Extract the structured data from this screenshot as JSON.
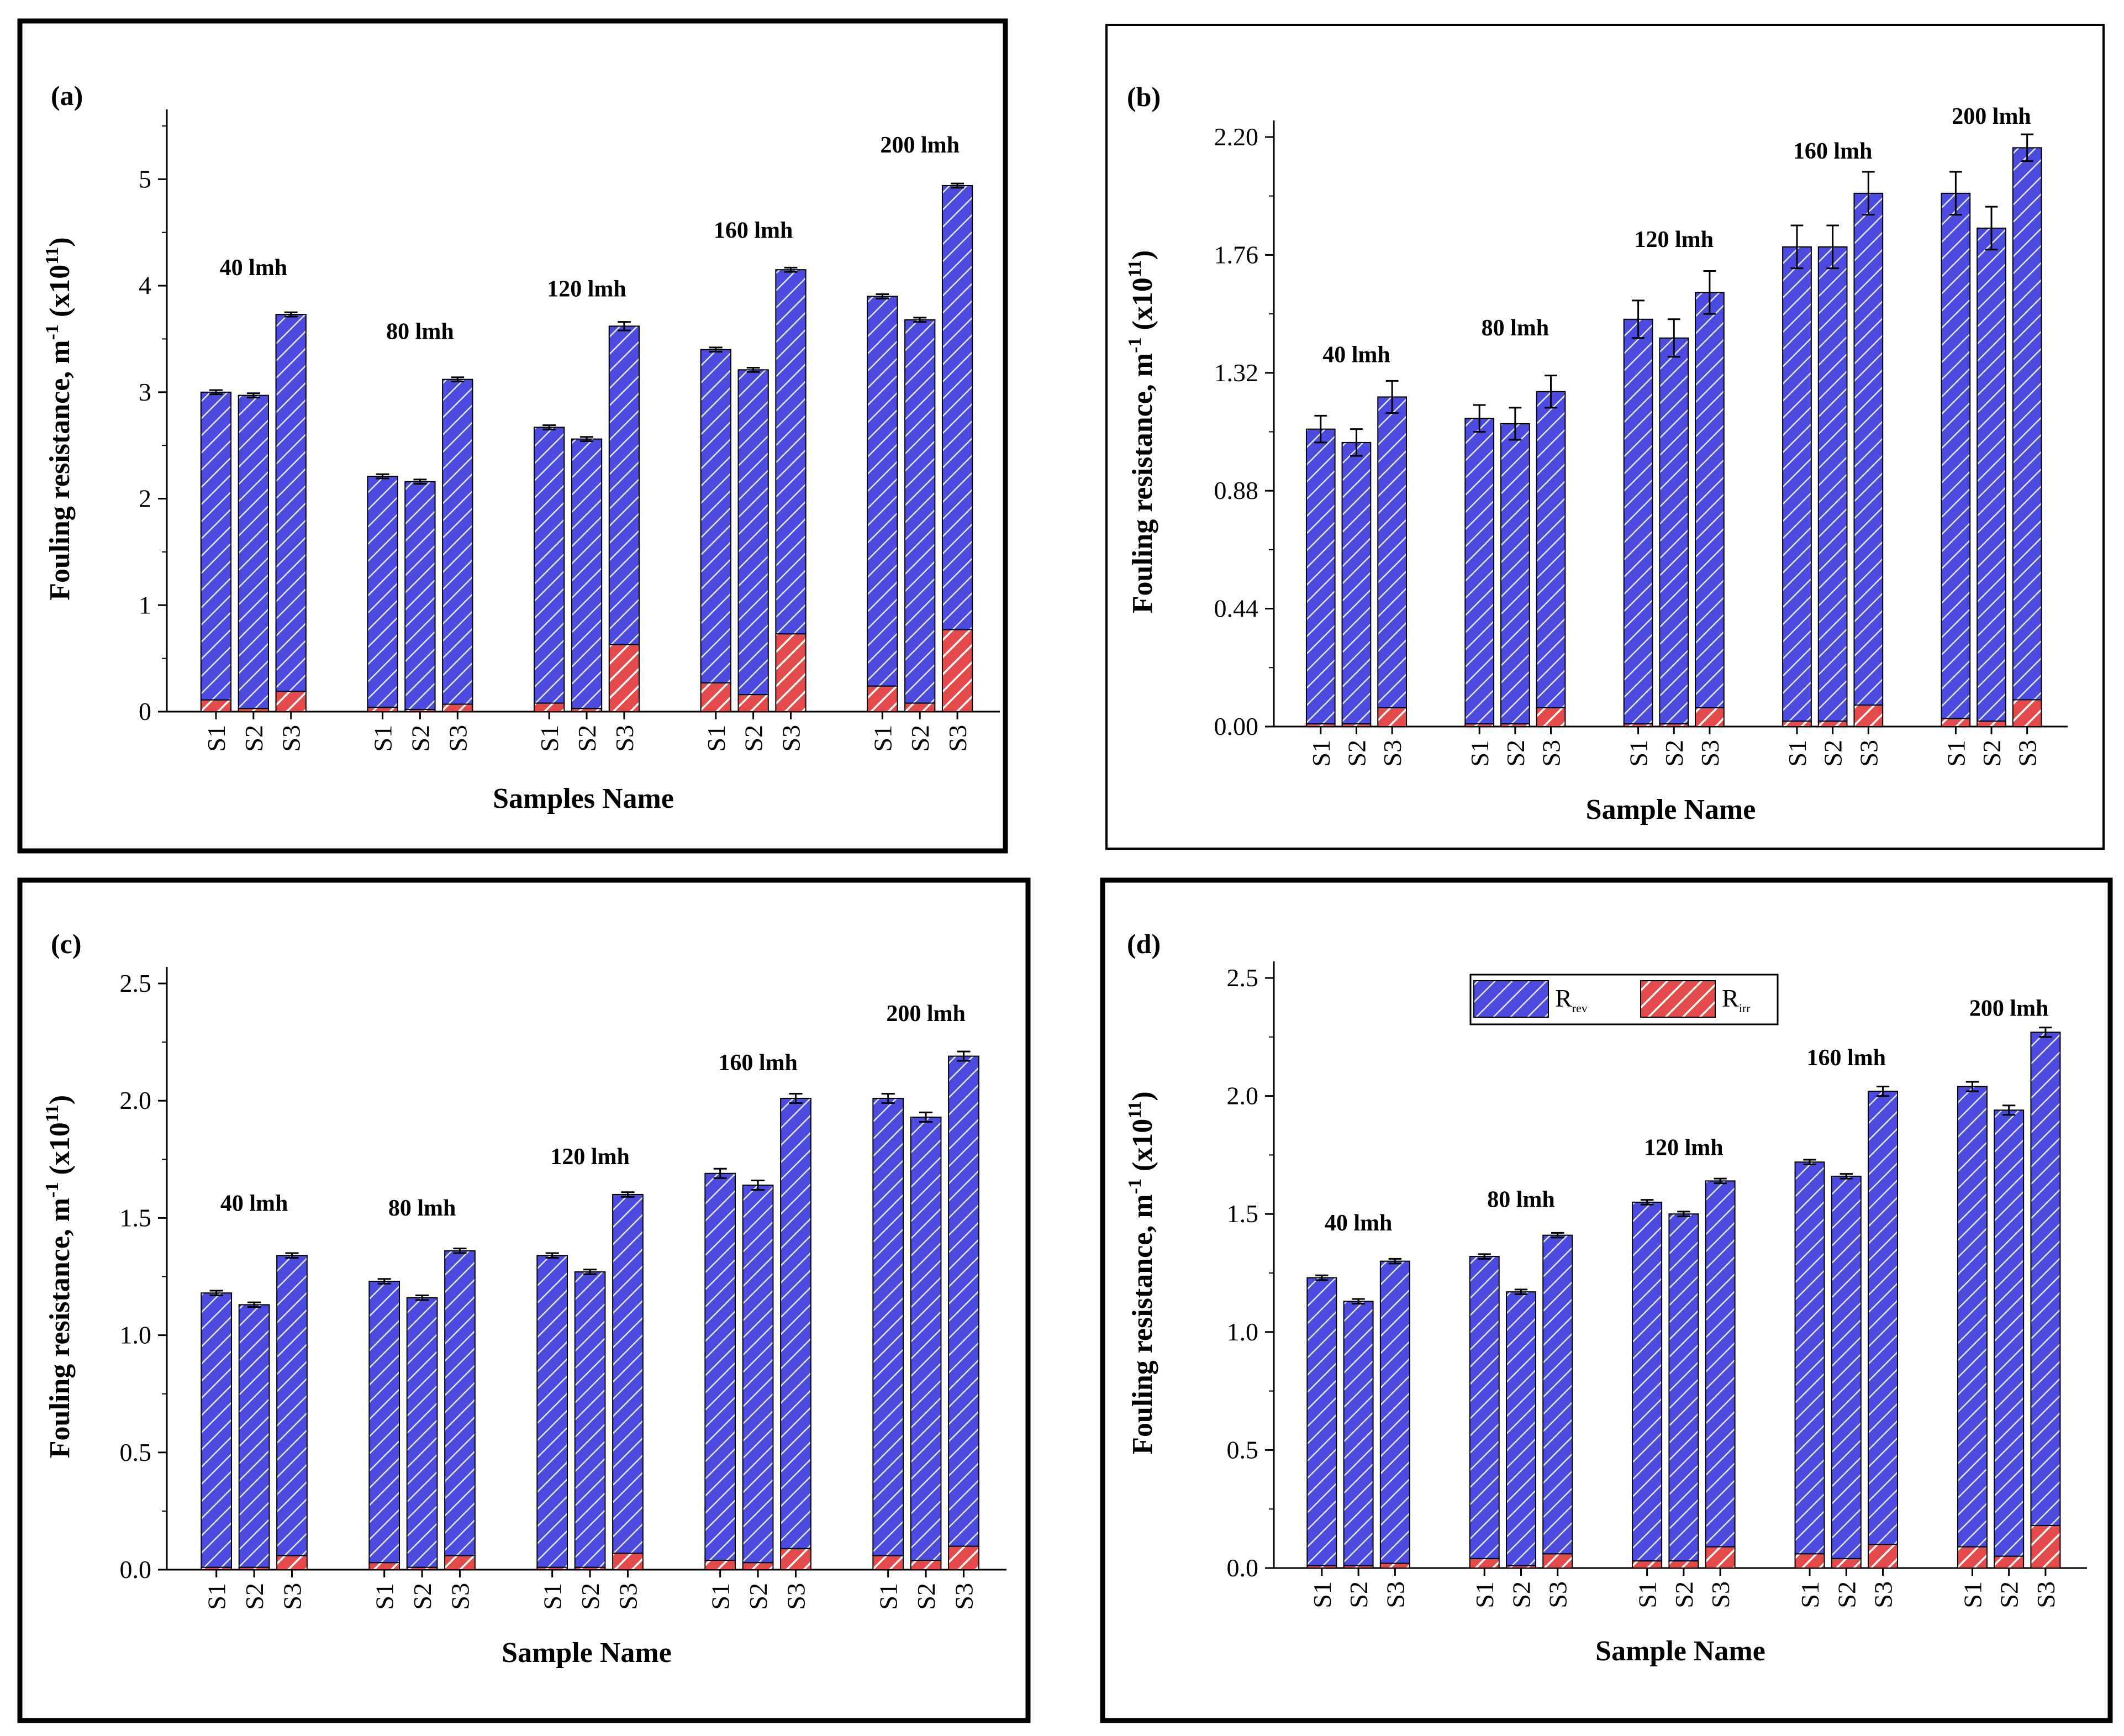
{
  "colors": {
    "rev": "#4b4bdf",
    "irr": "#e54a4a",
    "rev_hatch": "#1a1a9a",
    "irr_hatch": "#ffffff"
  },
  "legend": {
    "rev_main": "R",
    "rev_sub": "rev",
    "irr_main": "R",
    "irr_sub": "irr"
  },
  "chart_data": [
    {
      "type": "bar",
      "stacked": true,
      "panel": "(a)",
      "ylabel": "Fouling resistance, m",
      "ylabel_sup": "-1",
      "ylabel_unit": " (x10",
      "ylabel_unit_sup": "11",
      "ylabel_end": ")",
      "xlabel": "Samples Name",
      "yticks": [
        "0",
        "1",
        "2",
        "3",
        "4",
        "5"
      ],
      "ylim": [
        0,
        5.5
      ],
      "groups": [
        {
          "label": "40 lmh",
          "label_y": 4.1,
          "samples": [
            "S1",
            "S2",
            "S3"
          ],
          "total": [
            3.0,
            2.97,
            3.73
          ],
          "irr": [
            0.11,
            0.03,
            0.19
          ]
        },
        {
          "label": "80 lmh",
          "label_y": 3.5,
          "samples": [
            "S1",
            "S2",
            "S3"
          ],
          "total": [
            2.21,
            2.16,
            3.12
          ],
          "irr": [
            0.04,
            0.02,
            0.07
          ]
        },
        {
          "label": "120 lmh",
          "label_y": 3.9,
          "samples": [
            "S1",
            "S2",
            "S3"
          ],
          "total": [
            2.67,
            2.56,
            3.62
          ],
          "irr": [
            0.08,
            0.03,
            0.63
          ]
        },
        {
          "label": "160 lmh",
          "label_y": 4.45,
          "samples": [
            "S1",
            "S2",
            "S3"
          ],
          "total": [
            3.4,
            3.21,
            4.15
          ],
          "irr": [
            0.27,
            0.16,
            0.73
          ]
        },
        {
          "label": "200 lmh",
          "label_y": 5.25,
          "samples": [
            "S1",
            "S2",
            "S3"
          ],
          "total": [
            3.9,
            3.68,
            4.94
          ],
          "irr": [
            0.24,
            0.08,
            0.77
          ]
        }
      ],
      "err": [
        0.02,
        0.02,
        0.02,
        0.02,
        0.02,
        0.02,
        0.02,
        0.02,
        0.04,
        0.02,
        0.02,
        0.02,
        0.02,
        0.02,
        0.02
      ]
    },
    {
      "type": "bar",
      "stacked": true,
      "panel": "(b)",
      "ylabel": "Fouling resistance, m",
      "ylabel_sup": "-1",
      "ylabel_unit": " (x10",
      "ylabel_unit_sup": "11",
      "ylabel_end": ")",
      "xlabel": "Sample Name",
      "yticks": [
        "0.00",
        "0.44",
        "0.88",
        "1.32",
        "1.76",
        "2.20"
      ],
      "ylim": [
        0,
        2.2
      ],
      "groups": [
        {
          "label": "40 lmh",
          "label_y": 1.36,
          "samples": [
            "S1",
            "S2",
            "S3"
          ],
          "total": [
            1.11,
            1.06,
            1.23
          ],
          "irr": [
            0.01,
            0.01,
            0.07
          ]
        },
        {
          "label": "80 lmh",
          "label_y": 1.46,
          "samples": [
            "S1",
            "S2",
            "S3"
          ],
          "total": [
            1.15,
            1.13,
            1.25
          ],
          "irr": [
            0.01,
            0.01,
            0.07
          ]
        },
        {
          "label": "120 lmh",
          "label_y": 1.79,
          "samples": [
            "S1",
            "S2",
            "S3"
          ],
          "total": [
            1.52,
            1.45,
            1.62
          ],
          "irr": [
            0.01,
            0.01,
            0.07
          ]
        },
        {
          "label": "160 lmh",
          "label_y": 2.12,
          "samples": [
            "S1",
            "S2",
            "S3"
          ],
          "total": [
            1.79,
            1.79,
            1.99
          ],
          "irr": [
            0.02,
            0.02,
            0.08
          ]
        },
        {
          "label": "200 lmh",
          "label_y": 2.25,
          "samples": [
            "S1",
            "S2",
            "S3"
          ],
          "total": [
            1.99,
            1.86,
            2.16
          ],
          "irr": [
            0.03,
            0.02,
            0.1
          ]
        }
      ],
      "err": [
        0.05,
        0.05,
        0.06,
        0.05,
        0.06,
        0.06,
        0.07,
        0.07,
        0.08,
        0.08,
        0.08,
        0.08,
        0.08,
        0.08,
        0.05
      ]
    },
    {
      "type": "bar",
      "stacked": true,
      "panel": "(c)",
      "ylabel": "Fouling resistance, m",
      "ylabel_sup": "-1",
      "ylabel_unit": " (x10",
      "ylabel_unit_sup": "11",
      "ylabel_end": ")",
      "xlabel": "Sample Name",
      "yticks": [
        "0.0",
        "0.5",
        "1.0",
        "1.5",
        "2.0",
        "2.5"
      ],
      "ylim": [
        0,
        2.5
      ],
      "groups": [
        {
          "label": "40 lmh",
          "label_y": 1.53,
          "samples": [
            "S1",
            "S2",
            "S3"
          ],
          "total": [
            1.18,
            1.13,
            1.34
          ],
          "irr": [
            0.01,
            0.01,
            0.06
          ]
        },
        {
          "label": "80 lmh",
          "label_y": 1.51,
          "samples": [
            "S1",
            "S2",
            "S3"
          ],
          "total": [
            1.23,
            1.16,
            1.36
          ],
          "irr": [
            0.03,
            0.01,
            0.06
          ]
        },
        {
          "label": "120 lmh",
          "label_y": 1.73,
          "samples": [
            "S1",
            "S2",
            "S3"
          ],
          "total": [
            1.34,
            1.27,
            1.6
          ],
          "irr": [
            0.01,
            0.01,
            0.07
          ]
        },
        {
          "label": "160 lmh",
          "label_y": 2.13,
          "samples": [
            "S1",
            "S2",
            "S3"
          ],
          "total": [
            1.69,
            1.64,
            2.01
          ],
          "irr": [
            0.04,
            0.03,
            0.09
          ]
        },
        {
          "label": "200 lmh",
          "label_y": 2.34,
          "samples": [
            "S1",
            "S2",
            "S3"
          ],
          "total": [
            2.01,
            1.93,
            2.19
          ],
          "irr": [
            0.06,
            0.04,
            0.1
          ]
        }
      ],
      "err": [
        0.01,
        0.01,
        0.01,
        0.01,
        0.01,
        0.01,
        0.01,
        0.01,
        0.01,
        0.02,
        0.02,
        0.02,
        0.02,
        0.02,
        0.02
      ]
    },
    {
      "type": "bar",
      "stacked": true,
      "panel": "(d)",
      "ylabel": "Fouling resistance, m",
      "ylabel_sup": "-1",
      "ylabel_unit": " (x10",
      "ylabel_unit_sup": "11",
      "ylabel_end": ")",
      "xlabel": "Sample Name",
      "yticks": [
        "0.0",
        "0.5",
        "1.0",
        "1.5",
        "2.0",
        "2.5"
      ],
      "ylim": [
        0,
        2.5
      ],
      "groups": [
        {
          "label": "40 lmh",
          "label_y": 1.43,
          "samples": [
            "S1",
            "S2",
            "S3"
          ],
          "total": [
            1.23,
            1.13,
            1.3
          ],
          "irr": [
            0.01,
            0.01,
            0.02
          ]
        },
        {
          "label": "80 lmh",
          "label_y": 1.53,
          "samples": [
            "S1",
            "S2",
            "S3"
          ],
          "total": [
            1.32,
            1.17,
            1.41
          ],
          "irr": [
            0.04,
            0.01,
            0.06
          ]
        },
        {
          "label": "120 lmh",
          "label_y": 1.75,
          "samples": [
            "S1",
            "S2",
            "S3"
          ],
          "total": [
            1.55,
            1.5,
            1.64
          ],
          "irr": [
            0.03,
            0.03,
            0.09
          ]
        },
        {
          "label": "160 lmh",
          "label_y": 2.13,
          "samples": [
            "S1",
            "S2",
            "S3"
          ],
          "total": [
            1.72,
            1.66,
            2.02
          ],
          "irr": [
            0.06,
            0.04,
            0.1
          ]
        },
        {
          "label": "200 lmh",
          "label_y": 2.34,
          "samples": [
            "S1",
            "S2",
            "S3"
          ],
          "total": [
            2.04,
            1.94,
            2.27
          ],
          "irr": [
            0.09,
            0.05,
            0.18
          ]
        }
      ],
      "err": [
        0.01,
        0.01,
        0.01,
        0.01,
        0.01,
        0.01,
        0.01,
        0.01,
        0.01,
        0.01,
        0.01,
        0.02,
        0.02,
        0.02,
        0.02
      ]
    }
  ]
}
